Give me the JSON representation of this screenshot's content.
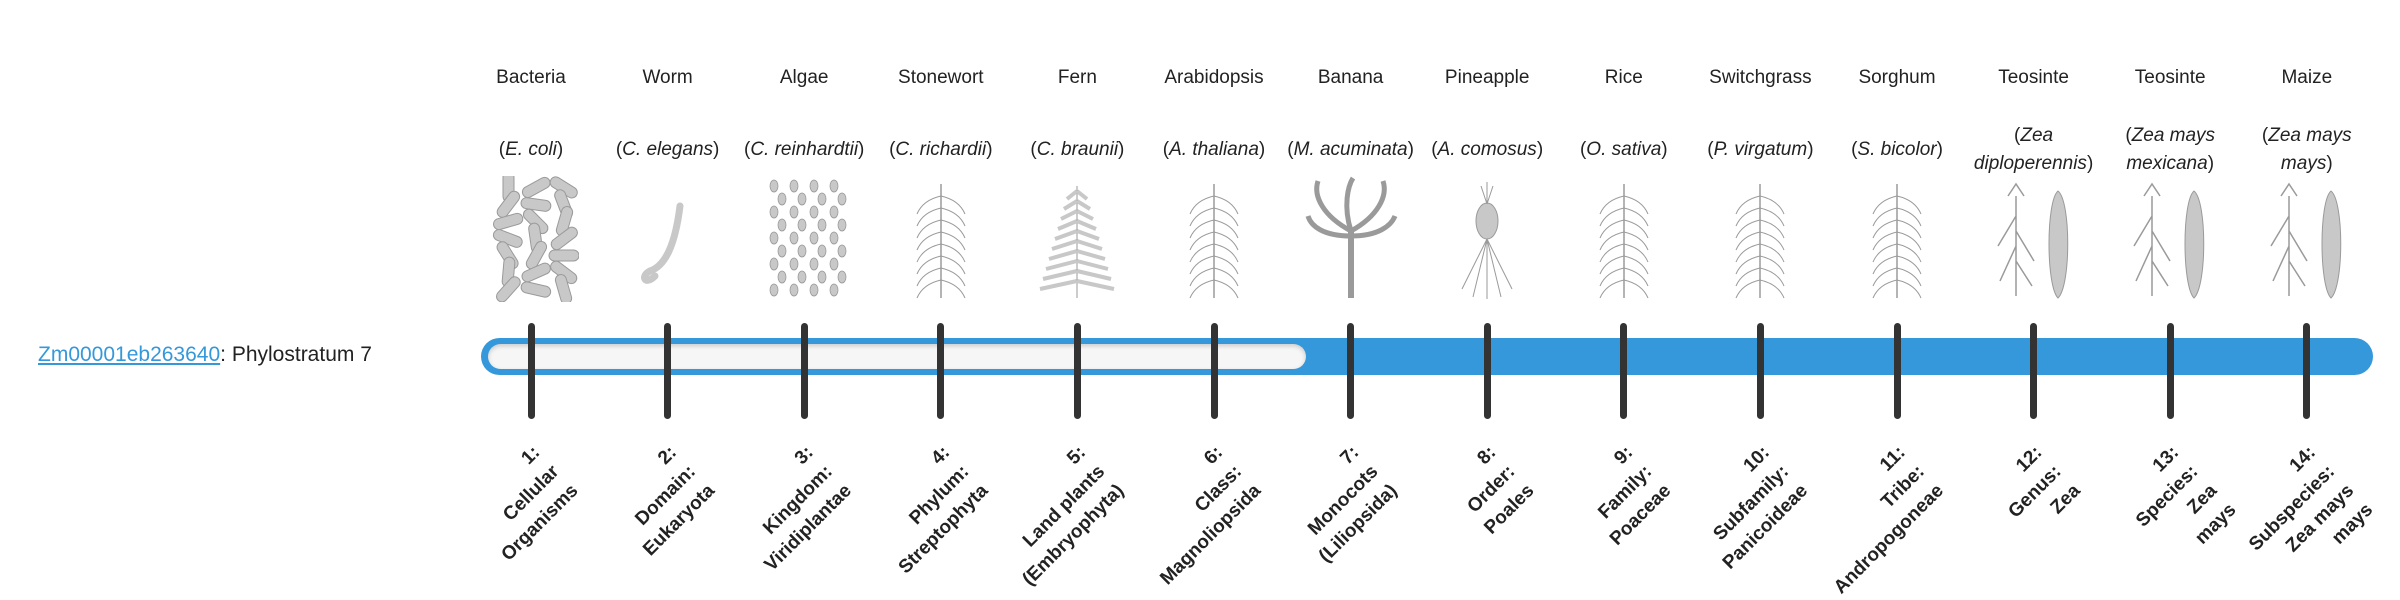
{
  "gene": {
    "id": "Zm00001eb263640",
    "separator": ": ",
    "label": "Phylostratum 7"
  },
  "phylostratum": 7,
  "colors": {
    "accent": "#3498db",
    "tick": "#333333",
    "track": "#f6f6f6"
  },
  "organisms": [
    {
      "common": "Bacteria",
      "species": "E. coli",
      "icon": "bacteria-illustration"
    },
    {
      "common": "Worm",
      "species": "C. elegans",
      "icon": "worm-illustration"
    },
    {
      "common": "Algae",
      "species": "C. reinhardtii",
      "icon": "algae-illustration"
    },
    {
      "common": "Stonewort",
      "species": "C. richardii",
      "icon": "stonewort-illustration"
    },
    {
      "common": "Fern",
      "species": "C. braunii",
      "icon": "fern-illustration"
    },
    {
      "common": "Arabidopsis",
      "species": "A. thaliana",
      "icon": "arabidopsis-illustration"
    },
    {
      "common": "Banana",
      "species": "M. acuminata",
      "icon": "banana-illustration"
    },
    {
      "common": "Pineapple",
      "species": "A. comosus",
      "icon": "pineapple-illustration"
    },
    {
      "common": "Rice",
      "species": "O. sativa",
      "icon": "rice-illustration"
    },
    {
      "common": "Switchgrass",
      "species": "P. virgatum",
      "icon": "switchgrass-illustration"
    },
    {
      "common": "Sorghum",
      "species": "S. bicolor",
      "icon": "sorghum-illustration"
    },
    {
      "common": "Teosinte",
      "species": "Zea diploperennis",
      "icon": "teosinte-illustration"
    },
    {
      "common": "Teosinte",
      "species": "Zea mays mexicana",
      "icon": "teosinte-illustration"
    },
    {
      "common": "Maize",
      "species": "Zea mays mays",
      "icon": "maize-illustration"
    }
  ],
  "strata": [
    {
      "lines": [
        "1:",
        "Cellular",
        "Organisms"
      ]
    },
    {
      "lines": [
        "2:",
        "Domain:",
        "Eukaryota"
      ]
    },
    {
      "lines": [
        "3:",
        "Kingdom:",
        "Viridiplantae"
      ]
    },
    {
      "lines": [
        "4:",
        "Phylum:",
        "Streptophyta"
      ]
    },
    {
      "lines": [
        "5:",
        "Land plants",
        "(Embryophyta)"
      ]
    },
    {
      "lines": [
        "6:",
        "Class:",
        "Magnoliopsida"
      ]
    },
    {
      "lines": [
        "7:",
        "Monocots",
        "(Liliopsida)"
      ]
    },
    {
      "lines": [
        "8:",
        "Order:",
        "Poales"
      ]
    },
    {
      "lines": [
        "9:",
        "Family:",
        "Poaceae"
      ]
    },
    {
      "lines": [
        "10:",
        "Subfamily:",
        "Panicoideae"
      ]
    },
    {
      "lines": [
        "11:",
        "Tribe:",
        "Andropogoneae"
      ]
    },
    {
      "lines": [
        "12:",
        "Genus:",
        "Zea"
      ]
    },
    {
      "lines": [
        "13:",
        "Species:",
        "Zea",
        "mays"
      ]
    },
    {
      "lines": [
        "14:",
        "Subspecies:",
        "Zea mays",
        "mays"
      ]
    }
  ]
}
